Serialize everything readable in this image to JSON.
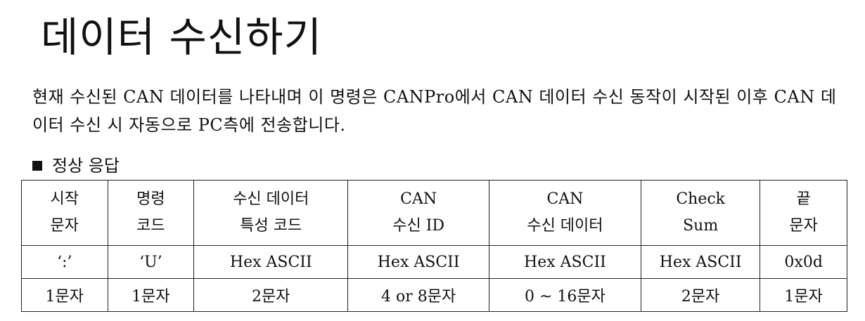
{
  "title": "데이터 수신하기",
  "description": "현재 수신된 CAN 데이터를 나타내며 이 명령은 CANPro에서 CAN 데이터 수신 동작이 시작된 이후 CAN 데이터 수신 시 자동으로 PC측에 전송합니다.",
  "section_heading": "정상 응답",
  "table": {
    "columns": [
      {
        "header_line1": "시작",
        "header_line2": "문자",
        "format": "‘:’",
        "length": "1문자"
      },
      {
        "header_line1": "명령",
        "header_line2": "코드",
        "format": "‘U’",
        "length": "1문자"
      },
      {
        "header_line1": "수신 데이터",
        "header_line2": "특성 코드",
        "format": "Hex ASCII",
        "length": "2문자"
      },
      {
        "header_line1": "CAN",
        "header_line2": "수신 ID",
        "format": "Hex ASCII",
        "length": "4 or 8문자"
      },
      {
        "header_line1": "CAN",
        "header_line2": "수신 데이터",
        "format": "Hex ASCII",
        "length": "0 ~ 16문자"
      },
      {
        "header_line1": "Check",
        "header_line2": "Sum",
        "format": "Hex ASCII",
        "length": "2문자"
      },
      {
        "header_line1": "끝",
        "header_line2": "문자",
        "format": "0x0d",
        "length": "1문자"
      }
    ]
  }
}
